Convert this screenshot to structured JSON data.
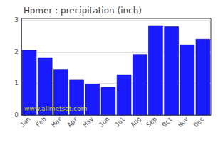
{
  "chart_data": {
    "type": "bar",
    "title": "Homer : precipitation (inch)",
    "categories": [
      "Jan",
      "Feb",
      "Mar",
      "Apr",
      "May",
      "Jun",
      "Jul",
      "Aug",
      "Sep",
      "Oct",
      "Nov",
      "Dec"
    ],
    "values": [
      2.05,
      1.82,
      1.45,
      1.13,
      0.98,
      0.88,
      1.28,
      1.92,
      2.83,
      2.8,
      2.22,
      2.4
    ],
    "color": "#1a1aff",
    "ylim": [
      0,
      3.05
    ],
    "yticks": [
      0,
      1,
      2,
      3
    ],
    "grid": true,
    "annotations": [
      "www.allmetsat.com"
    ]
  }
}
